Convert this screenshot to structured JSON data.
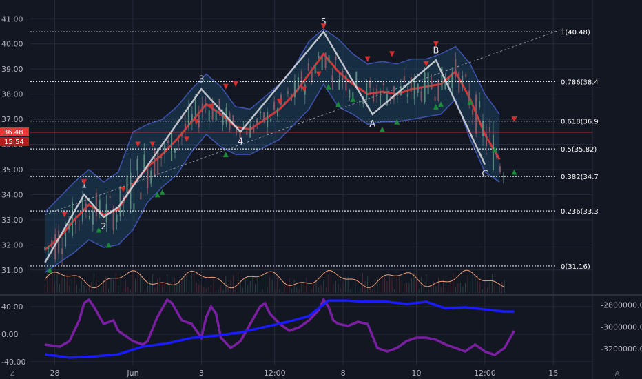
{
  "chart_data": [
    {
      "type": "line",
      "title": "",
      "ylim": [
        30.5,
        41.2
      ],
      "y_ticks": [
        "41.00",
        "40.00",
        "39.00",
        "38.00",
        "37.00",
        "36.00",
        "35.00",
        "34.00",
        "33.00",
        "32.00",
        "31.00"
      ],
      "y_tick_values": [
        41,
        40,
        39,
        38,
        37,
        36,
        35,
        34,
        33,
        32,
        31
      ],
      "x_ticks": [
        "28",
        "Jun",
        "3",
        "12:00",
        "8",
        "10",
        "12:00",
        "15"
      ],
      "x_tick_values": [
        2,
        18,
        32,
        47,
        61,
        76,
        90,
        104
      ],
      "xlim": [
        -3,
        112
      ],
      "last_price": "36.48",
      "last_price_value": 36.48,
      "countdown": "15:54",
      "fibonacci_levels": [
        {
          "label": "1(40.48)",
          "value": 40.48
        },
        {
          "label": "0.786(38.4",
          "value": 38.5
        },
        {
          "label": "0.618(36.9",
          "value": 36.93
        },
        {
          "label": "0.5(35.82)",
          "value": 35.82
        },
        {
          "label": "0.382(34.7",
          "value": 34.72
        },
        {
          "label": "0.236(33.3",
          "value": 33.35
        },
        {
          "label": "0(31.16)",
          "value": 31.16
        }
      ],
      "wave_points": [
        {
          "label": "",
          "x": 0,
          "y": 31.3
        },
        {
          "label": "1",
          "x": 8,
          "y": 34.0
        },
        {
          "label": "2",
          "x": 12,
          "y": 33.1
        },
        {
          "label": "",
          "x": 15,
          "y": 33.5
        },
        {
          "label": "3",
          "x": 32,
          "y": 38.2
        },
        {
          "label": "4",
          "x": 40,
          "y": 36.5
        },
        {
          "label": "5",
          "x": 57,
          "y": 40.48
        },
        {
          "label": "A",
          "x": 67,
          "y": 37.2
        },
        {
          "label": "B",
          "x": 80,
          "y": 39.35
        },
        {
          "label": "C",
          "x": 90,
          "y": 35.2
        }
      ],
      "trendline": {
        "x": [
          0,
          106
        ],
        "y": [
          33.2,
          40.6
        ]
      },
      "series": [
        {
          "name": "",
          "color": "#e53935",
          "x": [
            0,
            3,
            6,
            9,
            12,
            15,
            18,
            21,
            24,
            27,
            30,
            33,
            36,
            39,
            42,
            45,
            48,
            51,
            54,
            57,
            60,
            63,
            66,
            69,
            72,
            75,
            78,
            81,
            84,
            87,
            90,
            93
          ],
          "y": [
            31.8,
            32.3,
            33.0,
            33.6,
            33.2,
            33.4,
            34.4,
            35.1,
            35.6,
            36.2,
            36.9,
            37.6,
            37.2,
            36.7,
            36.6,
            37.0,
            37.4,
            38.0,
            38.8,
            39.6,
            38.9,
            38.4,
            38.0,
            38.1,
            38.0,
            38.2,
            38.3,
            38.4,
            38.9,
            37.8,
            36.4,
            35.4
          ]
        },
        {
          "name": "",
          "color": "#4a5fd0",
          "x": [
            0,
            3,
            6,
            9,
            12,
            15,
            18,
            21,
            24,
            27,
            30,
            33,
            36,
            39,
            42,
            45,
            48,
            51,
            54,
            57,
            60,
            63,
            66,
            69,
            72,
            75,
            78,
            81,
            84,
            87,
            90,
            93
          ],
          "y": [
            33.3,
            33.9,
            34.5,
            35.0,
            34.5,
            34.9,
            36.5,
            36.8,
            37.0,
            37.5,
            38.2,
            38.8,
            38.3,
            37.5,
            37.4,
            37.9,
            38.4,
            39.1,
            40.1,
            40.6,
            40.2,
            39.6,
            39.2,
            39.3,
            39.2,
            39.4,
            39.4,
            39.6,
            39.9,
            39.2,
            38.0,
            37.2
          ]
        },
        {
          "name": "",
          "color": "#4a5fd0",
          "x": [
            0,
            3,
            6,
            9,
            12,
            15,
            18,
            21,
            24,
            27,
            30,
            33,
            36,
            39,
            42,
            45,
            48,
            51,
            54,
            57,
            60,
            63,
            66,
            69,
            72,
            75,
            78,
            81,
            84,
            87,
            90,
            93
          ],
          "y": [
            30.9,
            31.3,
            31.7,
            32.2,
            31.9,
            32.0,
            32.6,
            33.7,
            34.3,
            34.8,
            35.7,
            36.4,
            35.9,
            35.6,
            35.6,
            35.9,
            36.2,
            36.8,
            37.4,
            38.4,
            37.5,
            37.2,
            36.8,
            36.9,
            36.9,
            37.0,
            37.1,
            37.2,
            37.8,
            36.2,
            34.9,
            34.5
          ]
        }
      ],
      "up_arrows": [
        [
          1,
          31.0
        ],
        [
          11,
          32.6
        ],
        [
          13,
          32.0
        ],
        [
          23,
          34.0
        ],
        [
          24,
          34.1
        ],
        [
          37,
          35.6
        ],
        [
          58,
          38.3
        ],
        [
          60,
          37.6
        ],
        [
          63,
          37.8
        ],
        [
          69,
          36.6
        ],
        [
          72,
          36.9
        ],
        [
          80,
          37.5
        ],
        [
          81,
          37.6
        ],
        [
          87,
          37.7
        ],
        [
          92,
          35.8
        ],
        [
          96,
          34.9
        ]
      ],
      "down_arrows": [
        [
          8,
          34.5
        ],
        [
          4,
          33.2
        ],
        [
          16,
          34.2
        ],
        [
          19,
          36.0
        ],
        [
          22,
          36.0
        ],
        [
          29,
          36.2
        ],
        [
          31,
          36.9
        ],
        [
          34,
          37.5
        ],
        [
          37,
          38.3
        ],
        [
          39,
          38.4
        ],
        [
          48,
          37.7
        ],
        [
          53,
          38.2
        ],
        [
          56,
          38.8
        ],
        [
          57,
          40.7
        ],
        [
          66,
          39.4
        ],
        [
          71,
          39.6
        ],
        [
          78,
          39.2
        ],
        [
          80,
          40.0
        ],
        [
          96,
          37.0
        ]
      ],
      "oscillator": [
        {
          "name": "",
          "color": "#7b1fa2",
          "x": [
            0,
            3,
            5,
            7,
            8,
            9,
            10,
            12,
            14,
            15,
            17,
            18,
            20,
            21,
            23,
            25,
            26,
            28,
            30,
            32,
            33,
            34,
            35,
            36,
            38,
            40,
            42,
            44,
            45,
            46,
            48,
            50,
            52,
            54,
            56,
            57,
            58,
            59,
            60,
            62,
            64,
            66,
            68,
            70,
            72,
            74,
            76,
            78,
            80,
            82,
            84,
            86,
            88,
            90,
            92,
            94,
            96
          ],
          "y": [
            -15,
            -18,
            -10,
            20,
            45,
            50,
            40,
            15,
            20,
            5,
            -5,
            -10,
            -15,
            -10,
            25,
            50,
            45,
            20,
            15,
            -5,
            25,
            40,
            30,
            -5,
            -20,
            -10,
            15,
            40,
            45,
            30,
            15,
            5,
            10,
            20,
            35,
            50,
            40,
            20,
            15,
            12,
            18,
            15,
            -20,
            -25,
            -20,
            -10,
            -5,
            -5,
            -8,
            -15,
            -20,
            -25,
            -15,
            -25,
            -30,
            -20,
            5
          ],
          "ylim": [
            -45,
            55
          ]
        },
        {
          "name": "",
          "color": "#1a1aff",
          "x": [
            0,
            5,
            10,
            15,
            20,
            25,
            30,
            35,
            40,
            45,
            50,
            54,
            58,
            62,
            66,
            70,
            74,
            78,
            82,
            86,
            90,
            94,
            96
          ],
          "y": [
            -3250000,
            -3280000,
            -3270000,
            -3250000,
            -3180000,
            -3150000,
            -3100000,
            -3080000,
            -3050000,
            -3000000,
            -2950000,
            -2900000,
            -2760000,
            -2760000,
            -2770000,
            -2770000,
            -2790000,
            -2770000,
            -2830000,
            -2820000,
            -2840000,
            -2860000,
            -2860000
          ],
          "ylim": [
            -3350000,
            -2720000
          ]
        }
      ],
      "oscillator_left_ticks": [
        "40.00",
        "0.00",
        "-40.00"
      ],
      "oscillator_left_values": [
        40,
        0,
        -40
      ],
      "oscillator_right_ticks": [
        "-2800000.00",
        "-3000000.00",
        "-3200000.00"
      ],
      "oscillator_right_values": [
        -2800000,
        -3000000,
        -3200000
      ]
    }
  ],
  "footer": {
    "left_icon": "Z",
    "right_icon": "A"
  },
  "colors": {
    "background": "#131722",
    "grid": "#262b3b",
    "price_badge": "#e53935",
    "wave": "#d1d4dc",
    "fib": "#e0e3eb"
  }
}
